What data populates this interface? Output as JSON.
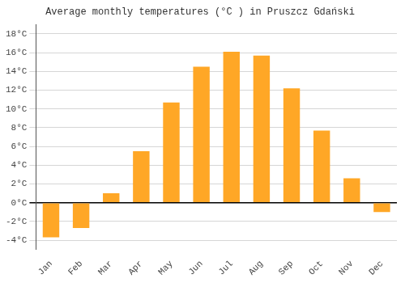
{
  "chart_data": {
    "type": "bar",
    "title": "Average monthly temperatures (°C ) in Pruszcz Gdański",
    "categories": [
      "Jan",
      "Feb",
      "Mar",
      "Apr",
      "May",
      "Jun",
      "Jul",
      "Aug",
      "Sep",
      "Oct",
      "Nov",
      "Dec"
    ],
    "values": [
      -3.7,
      -2.7,
      1.0,
      5.5,
      10.7,
      14.5,
      16.1,
      15.7,
      12.2,
      7.7,
      2.6,
      -1.0
    ],
    "color": "#FFA726",
    "ylim": [
      -5,
      19
    ],
    "yticks": [
      {
        "value": -4,
        "label": "-4°C"
      },
      {
        "value": -2,
        "label": "-2°C"
      },
      {
        "value": 0,
        "label": "0°C"
      },
      {
        "value": 2,
        "label": "2°C"
      },
      {
        "value": 4,
        "label": "4°C"
      },
      {
        "value": 6,
        "label": "6°C"
      },
      {
        "value": 8,
        "label": "8°C"
      },
      {
        "value": 10,
        "label": "10°C"
      },
      {
        "value": 12,
        "label": "12°C"
      },
      {
        "value": 14,
        "label": "14°C"
      },
      {
        "value": 16,
        "label": "16°C"
      },
      {
        "value": 18,
        "label": "18°C"
      }
    ],
    "grid": true
  }
}
